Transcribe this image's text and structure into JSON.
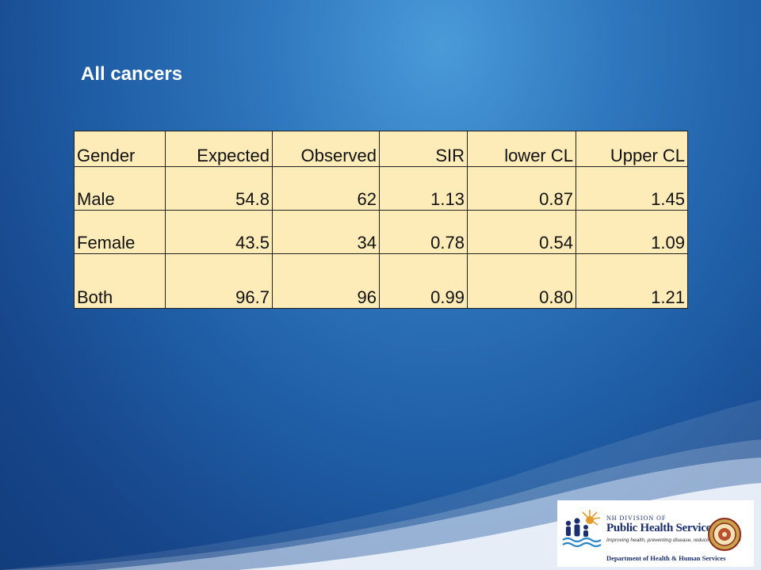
{
  "slide": {
    "title": "All cancers"
  },
  "table": {
    "headers": [
      "Gender",
      "Expected",
      "Observed",
      "SIR",
      "lower CL",
      "Upper CL"
    ],
    "rows": [
      [
        "Male",
        "54.8",
        "62",
        "1.13",
        "0.87",
        "1.45"
      ],
      [
        "Female",
        "43.5",
        "34",
        "0.78",
        "0.54",
        "1.09"
      ],
      [
        "Both",
        "96.7",
        "96",
        "0.99",
        "0.80",
        "1.21"
      ]
    ],
    "fill_color": "#fdebb8"
  },
  "logo": {
    "division": "NH DIVISION OF",
    "name": "Public Health Services",
    "tagline": "Improving health, preventing disease, reducing costs for all",
    "department": "Department of Health & Human Services"
  },
  "colors": {
    "background": "#1f5ea6",
    "title": "#ffffff"
  }
}
